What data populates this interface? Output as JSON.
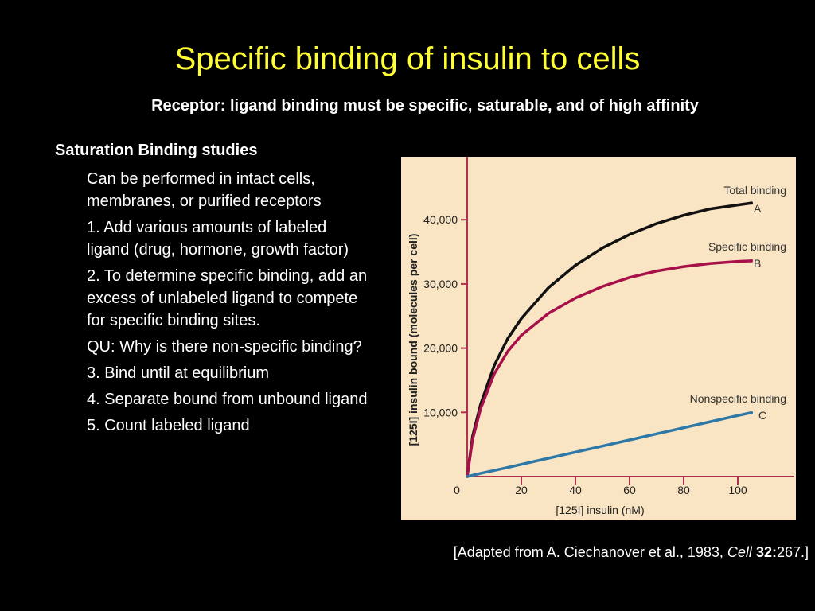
{
  "slide": {
    "title": "Specific binding of insulin to cells",
    "subtitle": "Receptor: ligand binding must be specific, saturable, and of high affinity",
    "section_heading": "Saturation Binding studies",
    "bullets": [
      "Can be performed in intact cells, membranes, or purified receptors",
      "1. Add various amounts of labeled ligand (drug, hormone, growth factor)",
      "2. To determine specific binding, add an excess of unlabeled ligand to compete for specific binding sites.",
      "QU: Why is there non-specific binding?",
      "3. Bind until at equilibrium",
      "4. Separate bound from unbound ligand",
      "5. Count labeled ligand"
    ],
    "caption": {
      "prefix": "[Adapted from A. Ciechanover et al., 1983, ",
      "journal": "Cell",
      "volume": "32:",
      "suffix": "267.]"
    }
  },
  "colors": {
    "title": "#FFFF33",
    "background": "#000000",
    "text": "#FFFFFF",
    "plot_background": "#F9E5C3",
    "total_binding": "#111111",
    "specific_binding": "#A8104A",
    "nonspecific_binding": "#2E78A8",
    "axis": "#B03050"
  },
  "chart_data": {
    "type": "line",
    "xlabel": "[125I] insulin (nM)",
    "ylabel": "[125I] insulin bound (molecules per cell)",
    "xlim": [
      0,
      120
    ],
    "ylim": [
      0,
      50000
    ],
    "x_ticks": [
      20,
      40,
      60,
      80,
      100
    ],
    "x_tick_labels": [
      "20",
      "40",
      "60",
      "80",
      "100"
    ],
    "y_ticks": [
      0,
      10000,
      20000,
      30000,
      40000
    ],
    "y_tick_labels": [
      "0",
      "10,000",
      "20,000",
      "30,000",
      "40,000"
    ],
    "grid": false,
    "x": [
      0,
      2,
      5,
      10,
      15,
      20,
      30,
      40,
      50,
      60,
      70,
      80,
      90,
      100,
      105
    ],
    "series": [
      {
        "name": "Total binding",
        "marker": "A",
        "color": "#111111",
        "values": [
          0,
          6300,
          11300,
          17300,
          21500,
          24600,
          29400,
          32900,
          35600,
          37700,
          39400,
          40700,
          41700,
          42300,
          42600
        ]
      },
      {
        "name": "Specific binding",
        "marker": "B",
        "color": "#A8104A",
        "values": [
          0,
          5800,
          10600,
          16000,
          19500,
          22000,
          25400,
          27800,
          29600,
          31000,
          32000,
          32700,
          33200,
          33500,
          33600
        ]
      },
      {
        "name": "Nonspecific binding",
        "marker": "C",
        "color": "#2E78A8",
        "values": [
          0,
          200,
          500,
          950,
          1420,
          1900,
          2850,
          3800,
          4750,
          5700,
          6650,
          7600,
          8550,
          9500,
          9950
        ]
      }
    ]
  }
}
